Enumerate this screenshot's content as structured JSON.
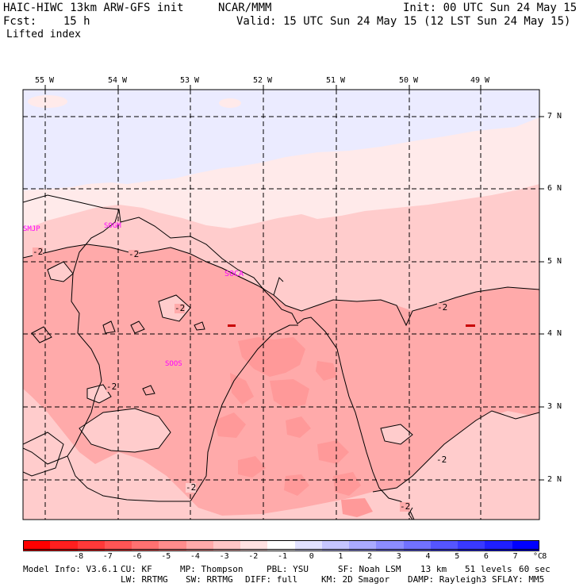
{
  "header": {
    "model": "HAIC-HIWC 13km ARW-GFS init",
    "org": "NCAR/MMM",
    "init": "Init: 00 UTC Sun 24 May 15",
    "fcst": "Fcst:    15 h",
    "valid": "Valid: 15 UTC Sun 24 May 15 (12 LST Sun 24 May 15)",
    "field": "Lifted index"
  },
  "map": {
    "lon_labels": [
      "55 W",
      "54 W",
      "53 W",
      "52 W",
      "51 W",
      "50 W",
      "49 W"
    ],
    "lat_labels": [
      "7 N",
      "6 N",
      "5 N",
      "4 N",
      "3 N",
      "2 N"
    ],
    "stations": [
      "SMJP",
      "SOGM",
      "SOCA",
      "SOOS"
    ],
    "contour_label": "-2",
    "colors": {
      "light_blue": "#ebebff",
      "pale_pink": "#ffeaea",
      "light_pink": "#ffcccc",
      "pink": "#ffaaaa",
      "deeper_pink": "#ff9999",
      "dark_red": "#c80000"
    }
  },
  "colorbar": {
    "ticks": [
      "-8",
      "-7",
      "-6",
      "-5",
      "-4",
      "-3",
      "-2",
      "-1",
      "0",
      "1",
      "2",
      "3",
      "4",
      "5",
      "6",
      "7",
      "8"
    ],
    "unit": "°C",
    "colors": [
      "#ff0000",
      "#ff1f1f",
      "#ff3939",
      "#ff5555",
      "#ff7171",
      "#ff8d8d",
      "#ffaaaa",
      "#ffc6c6",
      "#ffe2e2",
      "#ffffff",
      "#e2e2ff",
      "#c6c6ff",
      "#aaaaff",
      "#8d8dff",
      "#7171ff",
      "#5555ff",
      "#3939ff",
      "#1f1fff",
      "#0000ff"
    ]
  },
  "footer": {
    "line1": [
      "Model Info: V3.6.1",
      "CU: KF",
      "MP: Thompson",
      "PBL: YSU",
      "SF: Noah LSM",
      "13 km",
      "51 levels",
      "60 sec"
    ],
    "line2": [
      "LW: RRTMG",
      "SW: RRTMG",
      "DIFF: full",
      "KM: 2D Smagor",
      "DAMP: Rayleigh3",
      "SFLAY: MM5"
    ]
  }
}
